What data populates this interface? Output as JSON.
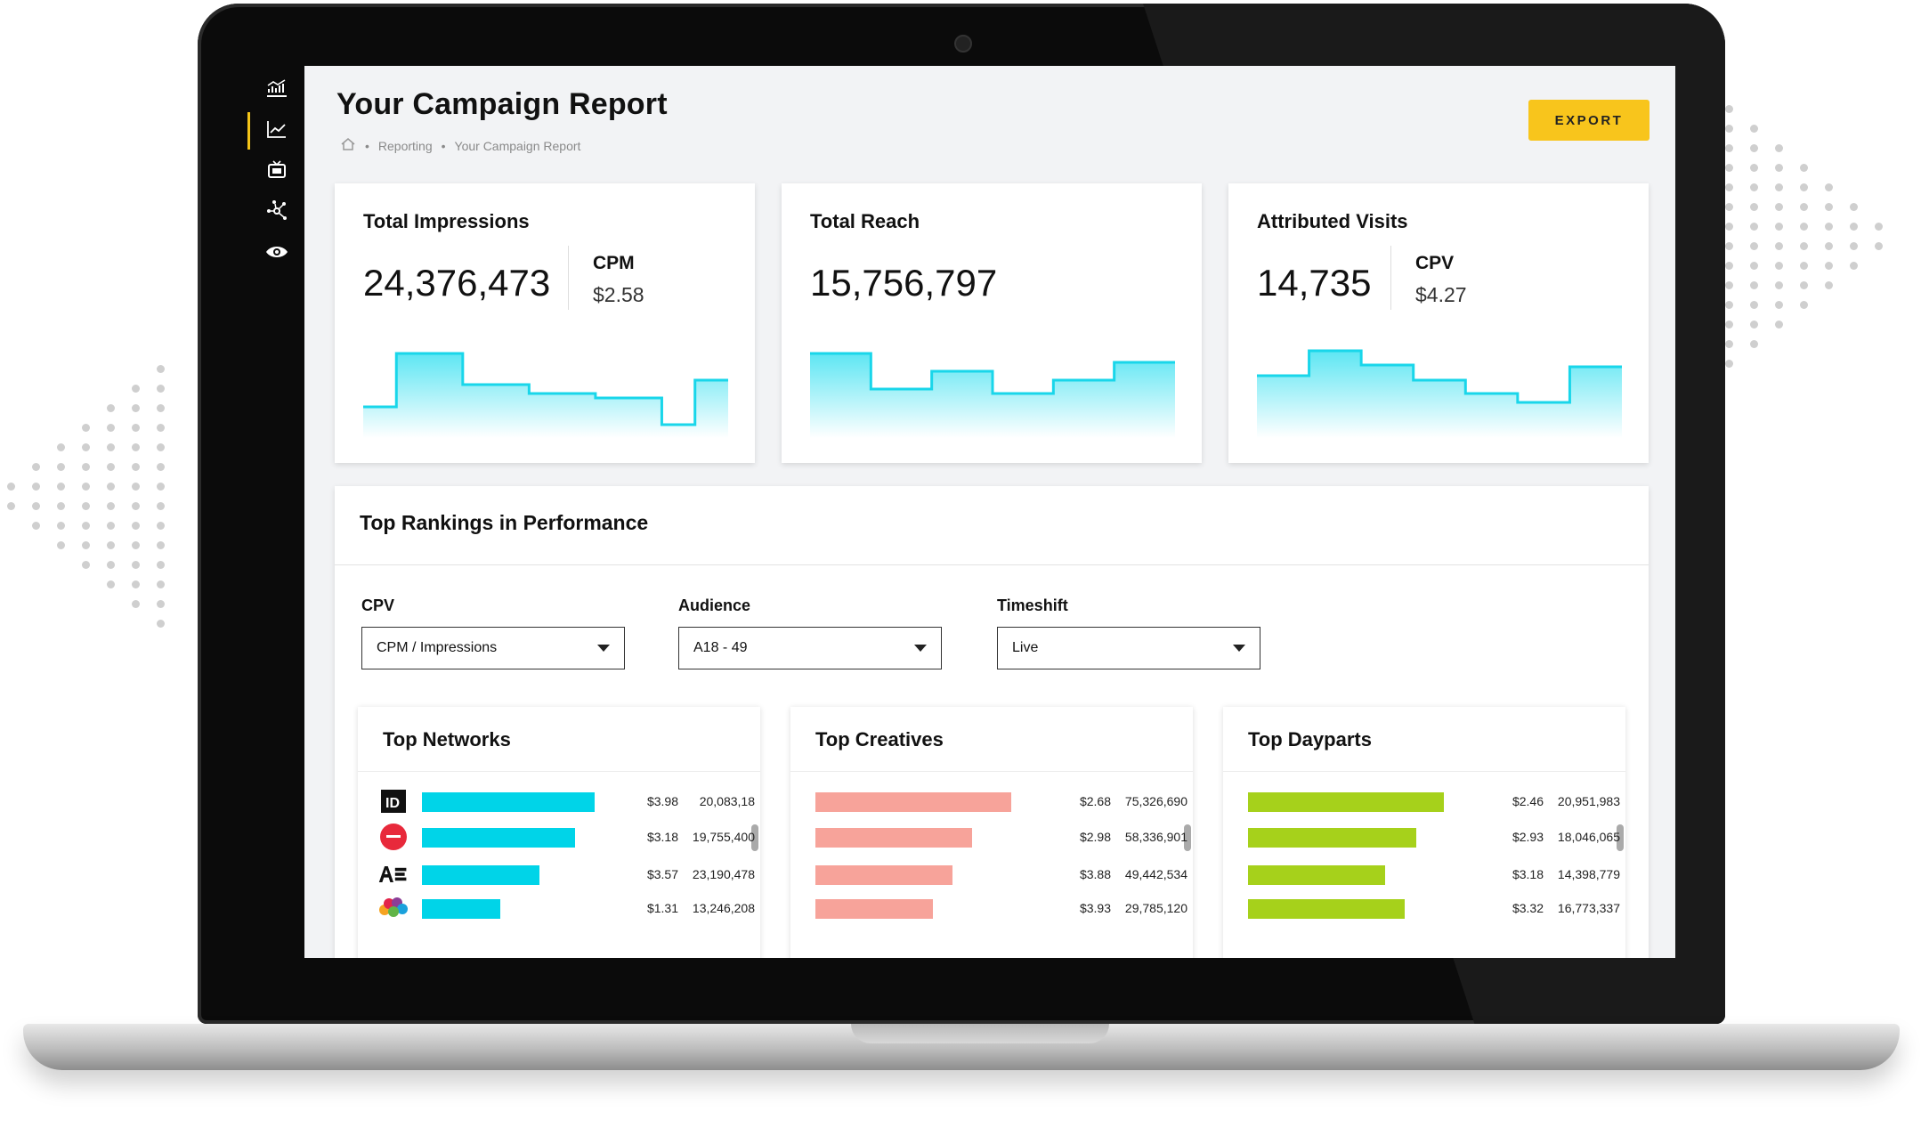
{
  "header": {
    "title": "Your Campaign Report",
    "breadcrumb": [
      "Reporting",
      "Your Campaign Report"
    ],
    "export_label": "EXPORT"
  },
  "sidebar": {
    "items": [
      {
        "icon": "analytics-icon"
      },
      {
        "icon": "line-chart-icon",
        "active": true
      },
      {
        "icon": "tv-icon"
      },
      {
        "icon": "network-icon"
      },
      {
        "icon": "eye-icon"
      }
    ]
  },
  "kpis": [
    {
      "title": "Total Impressions",
      "value": "24,376,473",
      "sub_label": "CPM",
      "sub_value": "$2.58",
      "sparkline": [
        0.15,
        0.75,
        0.75,
        0.4,
        0.4,
        0.3,
        0.3,
        0.25,
        0.25,
        -0.05,
        0.45
      ]
    },
    {
      "title": "Total Reach",
      "value": "15,756,797",
      "sub_label": "",
      "sub_value": "",
      "sparkline": [
        0.75,
        0.35,
        0.55,
        0.3,
        0.45,
        0.65
      ]
    },
    {
      "title": "Attributed Visits",
      "value": "14,735",
      "sub_label": "CPV",
      "sub_value": "$4.27",
      "sparkline": [
        0.5,
        0.78,
        0.62,
        0.45,
        0.3,
        0.2,
        0.6
      ]
    }
  ],
  "rankings": {
    "title": "Top Rankings in Performance",
    "filters": [
      {
        "label": "CPV",
        "value": "CPM / Impressions"
      },
      {
        "label": "Audience",
        "value": "A18 - 49"
      },
      {
        "label": "Timeshift",
        "value": "Live"
      }
    ],
    "cards": [
      {
        "title": "Top Networks",
        "color": "#00d4e8",
        "rows": [
          {
            "logo": "ID",
            "bar": 0.88,
            "price": "$3.98",
            "count": "20,083,18"
          },
          {
            "logo": "LIFETIME",
            "bar": 0.78,
            "price": "$3.18",
            "count": "19,755,400"
          },
          {
            "logo": "A&E",
            "bar": 0.6,
            "price": "$3.57",
            "count": "23,190,478"
          },
          {
            "logo": "NBC",
            "bar": 0.4,
            "price": "$1.31",
            "count": "13,246,208"
          }
        ]
      },
      {
        "title": "Top Creatives",
        "color": "#f7a39a",
        "rows": [
          {
            "bar": 1.0,
            "price": "$2.68",
            "count": "75,326,690"
          },
          {
            "bar": 0.8,
            "price": "$2.98",
            "count": "58,336,901"
          },
          {
            "bar": 0.7,
            "price": "$3.88",
            "count": "49,442,534"
          },
          {
            "bar": 0.6,
            "price": "$3.93",
            "count": "29,785,120"
          }
        ]
      },
      {
        "title": "Top Dayparts",
        "color": "#a6d11b",
        "rows": [
          {
            "bar": 1.0,
            "price": "$2.46",
            "count": "20,951,983"
          },
          {
            "bar": 0.86,
            "price": "$2.93",
            "count": "18,046,065"
          },
          {
            "bar": 0.7,
            "price": "$3.18",
            "count": "14,398,779"
          },
          {
            "bar": 0.8,
            "price": "$3.32",
            "count": "16,773,337"
          }
        ]
      }
    ]
  },
  "colors": {
    "accent": "#f8c51c",
    "line": "#19d6ea"
  }
}
